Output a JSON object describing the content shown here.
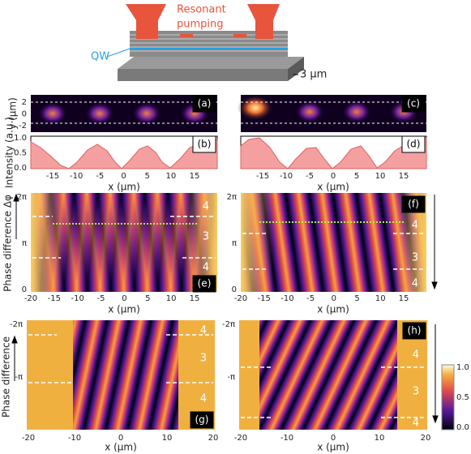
{
  "schematic": {
    "pump_line1": "Resonant",
    "pump_line2": "pumping",
    "qw": "QW",
    "size": "3 µm"
  },
  "tags": [
    "(a)",
    "(b)",
    "(c)",
    "(d)",
    "(e)",
    "(f)",
    "(g)",
    "(h)"
  ],
  "labels": {
    "y_pos": "y (µm)",
    "intensity": "Intensity (a.u.)",
    "phase_e": "Phase difference Δφ",
    "phase_g": "Phase difference",
    "x_label": "x (µm)",
    "x_label_g": "x (µm)"
  },
  "ticks": {
    "y_a": [
      "2",
      "0",
      "-2"
    ],
    "y_b": [
      "1.0",
      "0.5",
      "0.0"
    ],
    "x_ab": [
      "-15",
      "-10",
      "-5",
      "0",
      "5",
      "10",
      "15"
    ],
    "y_e": [
      "2π",
      "π",
      "0"
    ],
    "x_ef": [
      "-20",
      "-15",
      "-10",
      "-5",
      "0",
      "5",
      "10",
      "15"
    ],
    "y_g": [
      "-2π",
      "-π"
    ],
    "x_gh": [
      "-20",
      "-10",
      "0",
      "10",
      "20"
    ],
    "colorbar": [
      "1.0",
      "0.5",
      "0.0"
    ]
  },
  "regions": [
    "4",
    "3",
    "4"
  ]
}
